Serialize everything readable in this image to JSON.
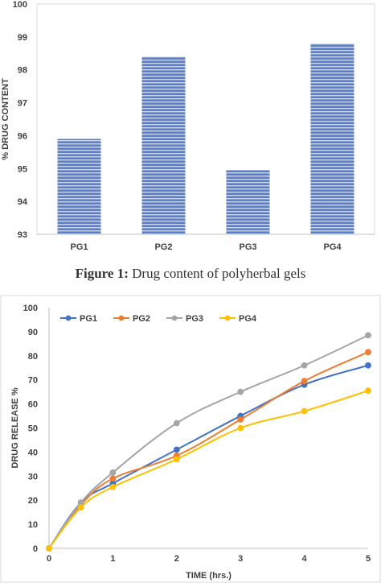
{
  "caption": {
    "label": "Figure 1:",
    "text": " Drug content of polyherbal gels"
  },
  "chart_data": [
    {
      "type": "bar",
      "title": "",
      "xlabel": "",
      "ylabel": "% DRUG CONTENT",
      "categories": [
        "PG1",
        "PG2",
        "PG3",
        "PG4"
      ],
      "values": [
        95.9,
        98.4,
        94.95,
        98.8
      ],
      "ylim": [
        93,
        100
      ],
      "yticks": [
        93,
        94,
        95,
        96,
        97,
        98,
        99,
        100
      ],
      "grid": false,
      "colors": {
        "bar": "#5b7fc7",
        "bar_stripe": "#c9d6ee"
      }
    },
    {
      "type": "line",
      "title": "",
      "xlabel": "TIME (hrs.)",
      "ylabel": "DRUG RELEASE %",
      "x": [
        0,
        0.5,
        1,
        2,
        3,
        4,
        5
      ],
      "xticks": [
        0,
        1,
        2,
        3,
        4,
        5
      ],
      "ylim": [
        0,
        100
      ],
      "yticks": [
        0,
        10,
        20,
        30,
        40,
        50,
        60,
        70,
        80,
        90,
        100
      ],
      "legend": "top-left",
      "grid": false,
      "series": [
        {
          "name": "PG1",
          "color": "#4472c4",
          "values": [
            0,
            19,
            27,
            41,
            55,
            68,
            76
          ]
        },
        {
          "name": "PG2",
          "color": "#ed7d31",
          "values": [
            0,
            18,
            29,
            38.5,
            53.5,
            69.5,
            81.5
          ]
        },
        {
          "name": "PG3",
          "color": "#a5a5a5",
          "values": [
            0,
            19,
            31.5,
            52,
            65,
            76,
            88.5
          ]
        },
        {
          "name": "PG4",
          "color": "#ffc000",
          "values": [
            0,
            17,
            25.5,
            37,
            50,
            57,
            65.5
          ]
        }
      ]
    }
  ]
}
